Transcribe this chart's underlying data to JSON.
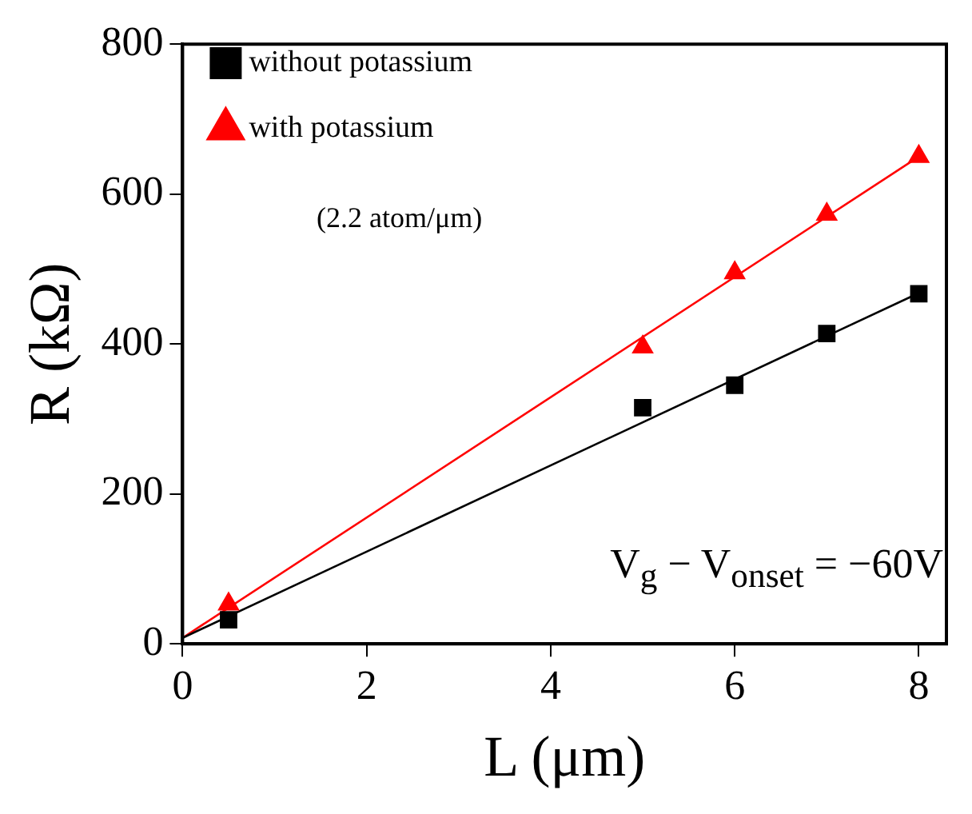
{
  "chart_data": {
    "type": "scatter",
    "xlabel": "L (μm)",
    "ylabel": "R (kΩ)",
    "xlim": [
      0,
      8.3
    ],
    "xticks": [
      0,
      2,
      4,
      6,
      8
    ],
    "ylim": [
      0,
      800
    ],
    "yticks": [
      0,
      200,
      400,
      600,
      800
    ],
    "grid": false,
    "legend": "top left",
    "series": [
      {
        "name": "without potassium",
        "marker": "square",
        "color": "#000000",
        "x": [
          0.5,
          5,
          6,
          7,
          8
        ],
        "values": [
          32,
          315,
          345,
          414,
          467
        ]
      },
      {
        "name": "with potassium",
        "marker": "triangle",
        "color": "#ff0000",
        "x": [
          0.5,
          5,
          6,
          7,
          8
        ],
        "values": [
          53,
          396,
          495,
          573,
          650
        ]
      },
      {
        "type": "line",
        "color": "#000000",
        "x": [
          0,
          8
        ],
        "values": [
          8,
          468
        ]
      },
      {
        "type": "line",
        "color": "#ff0000",
        "x": [
          0,
          8
        ],
        "values": [
          8,
          650
        ]
      }
    ],
    "annotations": [
      "(2.2 atom/μm)",
      "V$_{g}$ − V$_{onset}$ = −60V"
    ]
  }
}
